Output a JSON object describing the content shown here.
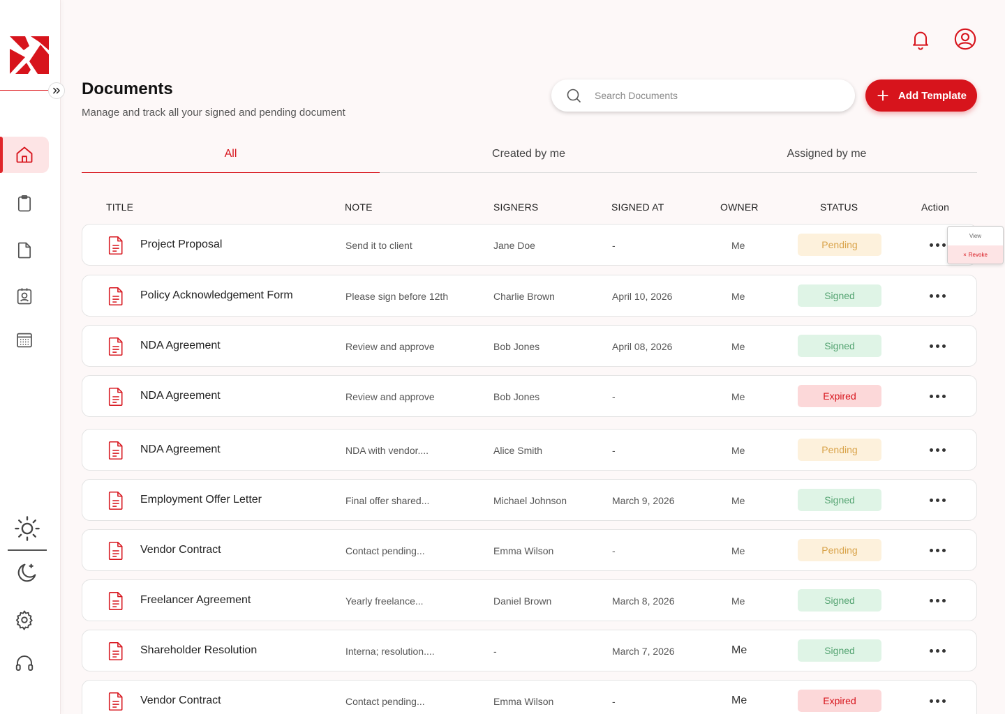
{
  "header": {
    "title": "Documents",
    "subtitle": "Manage and track all your signed and pending document",
    "search_placeholder": "Search Documents",
    "add_button_label": "Add Template"
  },
  "tabs": [
    {
      "label": "All",
      "active": true
    },
    {
      "label": "Created by me",
      "active": false
    },
    {
      "label": "Assigned by me",
      "active": false
    }
  ],
  "columns": [
    "TITLE",
    "NOTE",
    "SIGNERS",
    "SIGNED AT",
    "OWNER",
    "STATUS",
    "Action"
  ],
  "rows": [
    {
      "title": "Project Proposal",
      "note": "Send it to client",
      "signers": "Jane Doe",
      "signed_at": "-",
      "owner": "Me",
      "status": "Pending"
    },
    {
      "title": "Policy Acknowledgement Form",
      "note": "Please sign before 12th",
      "signers": "Charlie Brown",
      "signed_at": "April 10, 2026",
      "owner": "Me",
      "status": "Signed"
    },
    {
      "title": "NDA Agreement",
      "note": "Review and approve",
      "signers": "Bob Jones",
      "signed_at": "April 08, 2026",
      "owner": "Me",
      "status": "Signed"
    },
    {
      "title": "NDA Agreement",
      "note": "Review and approve",
      "signers": "Bob Jones",
      "signed_at": "-",
      "owner": "Me",
      "status": "Expired"
    },
    {
      "title": "NDA Agreement",
      "note": "NDA  with vendor....",
      "signers": "Alice Smith",
      "signed_at": "-",
      "owner": "Me",
      "status": "Pending"
    },
    {
      "title": "Employment Offer Letter",
      "note": "Final offer shared...",
      "signers": "Michael Johnson",
      "signed_at": "March 9, 2026",
      "owner": "Me",
      "status": "Signed"
    },
    {
      "title": "Vendor Contract",
      "note": "Contact pending...",
      "signers": "Emma Wilson",
      "signed_at": "-",
      "owner": "Me",
      "status": "Pending"
    },
    {
      "title": "Freelancer Agreement",
      "note": "Yearly freelance...",
      "signers": "Daniel Brown",
      "signed_at": "March 8, 2026",
      "owner": "Me",
      "status": "Signed"
    },
    {
      "title": "Shareholder Resolution",
      "note": "Interna; resolution....",
      "signers": "-",
      "signed_at": "March 7, 2026",
      "owner": "Me",
      "status": "Signed"
    },
    {
      "title": "Vendor Contract",
      "note": "Contact pending...",
      "signers": "Emma Wilson",
      "signed_at": "-",
      "owner": "Me",
      "status": "Expired"
    }
  ],
  "action_menu": {
    "view_label": "View",
    "revoke_label": "Revoke"
  },
  "colors": {
    "accent": "#d7141c",
    "pending_bg": "#fdf1dc",
    "signed_bg": "#dff4e6",
    "expired_bg": "#fcd8d9"
  },
  "icons": {
    "sidebar": [
      "home-icon",
      "clipboard-icon",
      "file-icon",
      "id-badge-icon",
      "calendar-grid-icon",
      "sun-icon",
      "moon-icon",
      "settings-icon",
      "headphones-icon"
    ],
    "header": [
      "bell-icon",
      "user-profile-icon",
      "search-icon",
      "plus-icon"
    ]
  }
}
